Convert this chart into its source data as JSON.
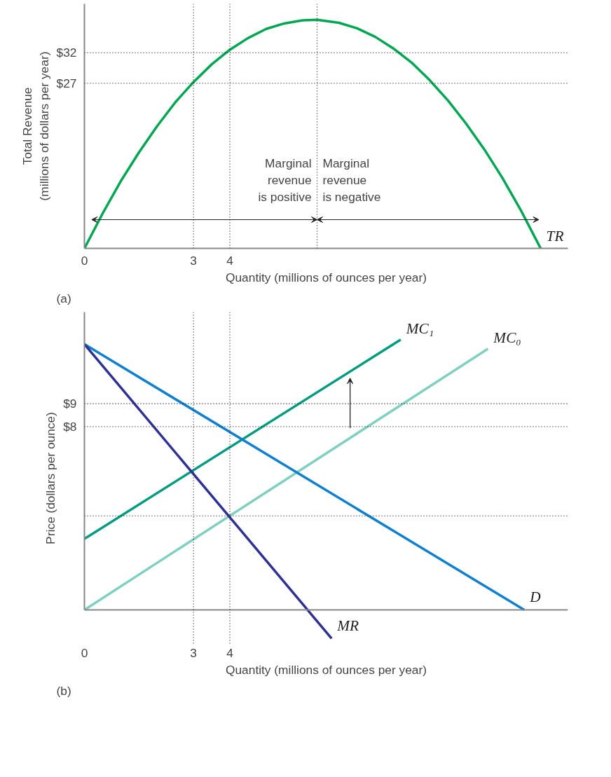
{
  "chart_data": [
    {
      "type": "line",
      "xlabel": "Quantity (millions of ounces per year)",
      "ylabel": "Total Revenue\n(millions of dollars per year)",
      "xlim": [
        0,
        13.3
      ],
      "ylim": [
        0,
        40
      ],
      "xticks": [
        0,
        3,
        4
      ],
      "yticks": [
        {
          "value": 27,
          "label": "$27"
        },
        {
          "value": 32,
          "label": "$32"
        }
      ],
      "x": [
        0,
        0.5,
        1,
        1.5,
        2,
        2.5,
        3,
        3.5,
        4,
        4.5,
        5,
        5.5,
        6,
        6.4,
        7,
        7.5,
        8,
        8.5,
        9,
        9.5,
        10,
        10.5,
        11,
        11.5,
        12,
        12.55
      ],
      "series": [
        {
          "name": "TR",
          "color": "#00a651",
          "values": [
            0,
            5.7,
            11.0,
            15.7,
            20.0,
            23.9,
            27.2,
            30.1,
            32.5,
            34.4,
            35.9,
            36.8,
            37.3,
            37.4,
            36.9,
            36.0,
            34.6,
            32.7,
            30.4,
            27.5,
            24.2,
            20.4,
            16.2,
            11.5,
            6.3,
            0
          ]
        }
      ],
      "ref_lines": [
        {
          "axis": "x",
          "value": 3,
          "line_style": "dotted"
        },
        {
          "axis": "x",
          "value": 4,
          "line_style": "dotted"
        },
        {
          "axis": "x",
          "value": 6.4,
          "line_style": "dotted"
        },
        {
          "axis": "y",
          "value": 27,
          "line_style": "dotted"
        },
        {
          "axis": "y",
          "value": 32,
          "line_style": "dotted"
        }
      ],
      "annotations": [
        {
          "text": "Marginal\nrevenue\nis positive",
          "x": 6.4,
          "y": 4.7
        },
        {
          "text": "Marginal\nrevenue\nis negative",
          "x": 6.4,
          "y": 4.7
        },
        "(a)"
      ]
    },
    {
      "type": "line",
      "xlabel": "Quantity (millions of ounces per year)",
      "ylabel": "Price (dollars per ounce)",
      "xlim": [
        0,
        13.3
      ],
      "ylim": [
        -1.5,
        13
      ],
      "xticks": [
        0,
        3,
        4
      ],
      "yticks": [
        {
          "value": 9,
          "label": "$9"
        },
        {
          "value": 8,
          "label": "$8"
        }
      ],
      "series": [
        {
          "name": "MC₁",
          "color": "#009b80",
          "x": [
            0,
            8.7
          ],
          "values": [
            3.1,
            11.8
          ]
        },
        {
          "name": "MC₀",
          "color": "#7fd0c0",
          "x": [
            0,
            11.1
          ],
          "values": [
            0,
            11.4
          ]
        },
        {
          "name": "D",
          "color": "#0f7fd0",
          "x": [
            0,
            12.1
          ],
          "values": [
            11.6,
            0
          ]
        },
        {
          "name": "MR",
          "color": "#2e3192",
          "x": [
            0,
            6.8
          ],
          "values": [
            11.6,
            -1.25
          ]
        }
      ],
      "ref_lines": [
        {
          "axis": "x",
          "value": 3,
          "line_style": "dotted"
        },
        {
          "axis": "x",
          "value": 4,
          "line_style": "dotted"
        },
        {
          "axis": "y",
          "value": 9,
          "line_style": "dotted"
        },
        {
          "axis": "y",
          "value": 8,
          "line_style": "dotted"
        },
        {
          "axis": "y",
          "value": 4.1,
          "line_style": "dotted"
        }
      ],
      "annotations": [
        "(b)"
      ]
    }
  ]
}
